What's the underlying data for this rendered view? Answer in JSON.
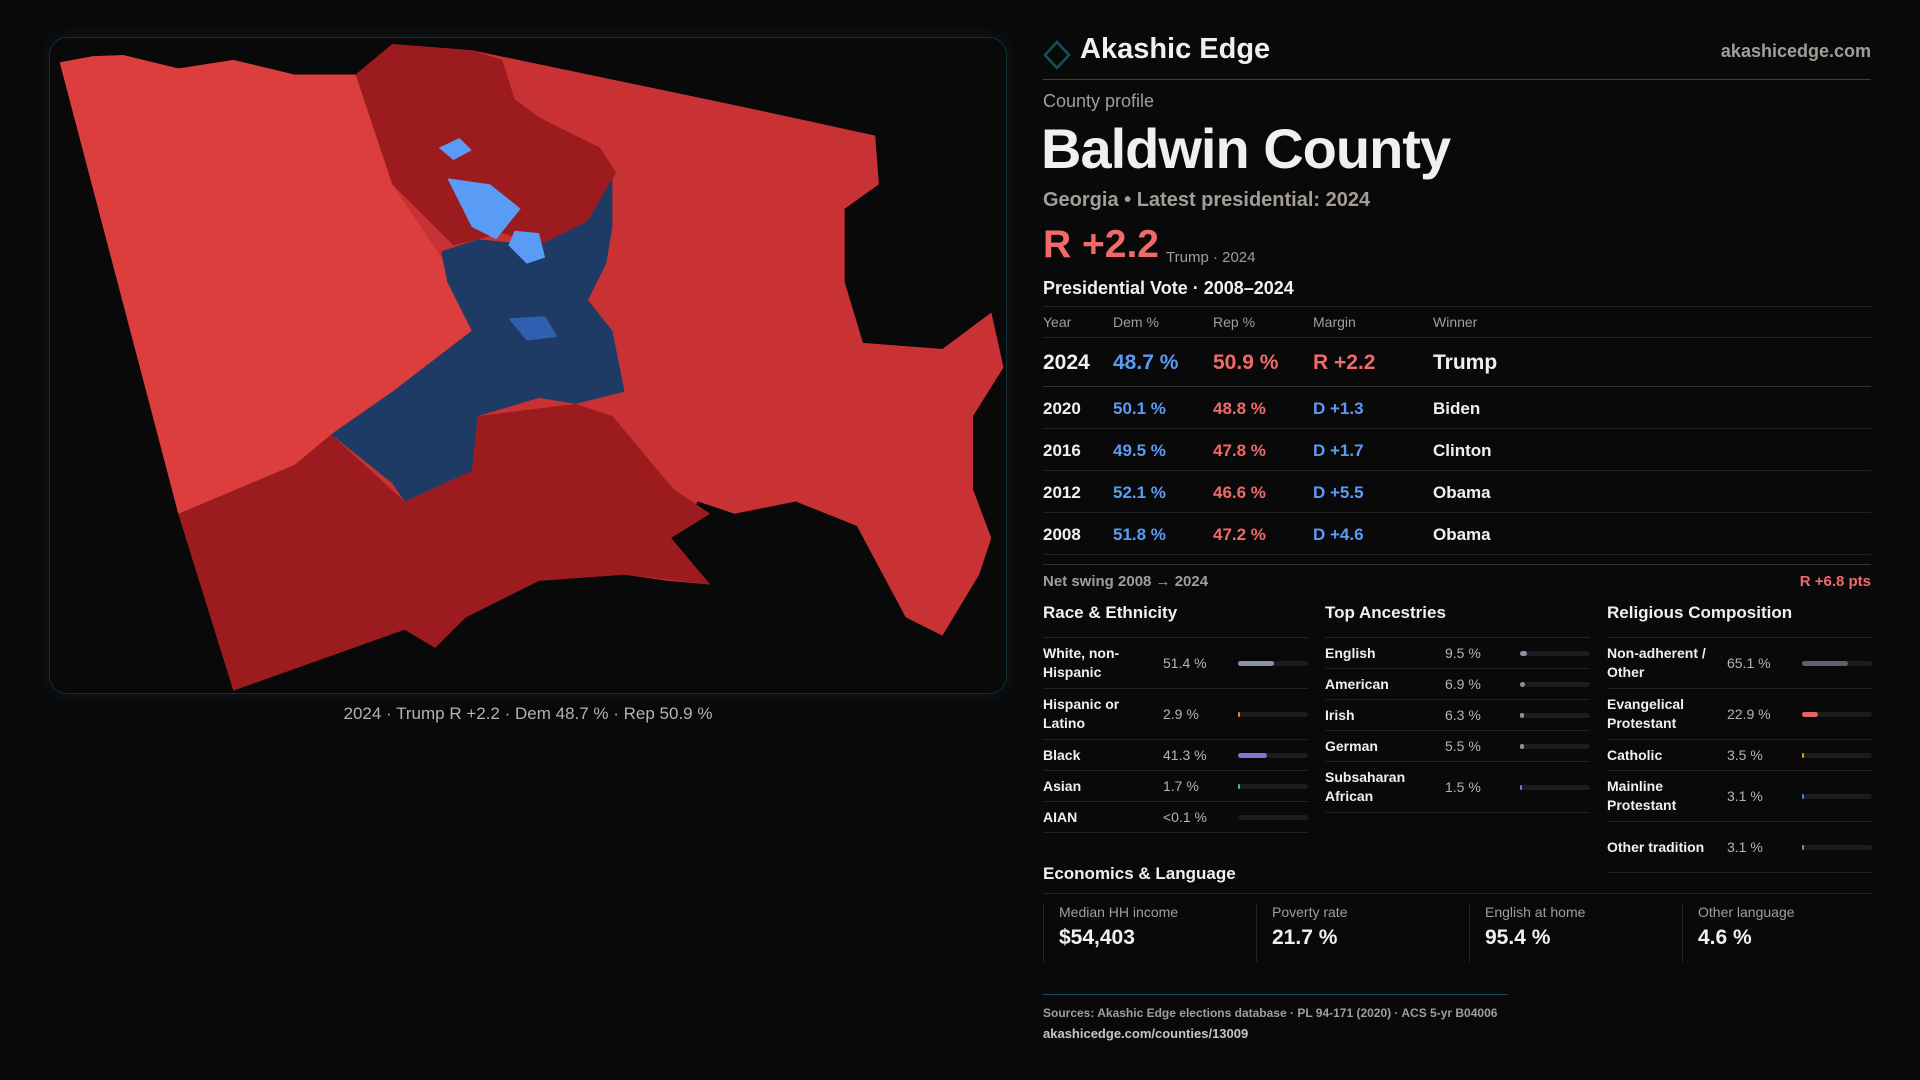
{
  "brand": {
    "name": "Akashic Edge",
    "site": "akashicedge.com",
    "accent": "#13505a"
  },
  "profile": {
    "kicker": "County profile",
    "title": "Baldwin County",
    "subtitle": "Georgia • Latest presidential: 2024",
    "margin": "R +2.2",
    "margin_note": "Trump · 2024"
  },
  "map": {
    "caption": "2024 · Trump R +2.2 · Dem 48.7 % · Rep 50.9 %",
    "colors": {
      "rep_strong": "#9c1b1e",
      "rep": "#c93234",
      "rep_light": "#dc3d3d",
      "dem_strong": "#1e3b66",
      "dem_light": "#5a9cf5"
    }
  },
  "vote": {
    "heading": "Presidential Vote · 2008–2024",
    "columns": [
      "Year",
      "Dem %",
      "Rep %",
      "Margin",
      "Winner"
    ],
    "rows": [
      {
        "year": "2024",
        "dem": "48.7 %",
        "rep": "50.9 %",
        "margin": "R +2.2",
        "party": "R",
        "winner": "Trump"
      },
      {
        "year": "2020",
        "dem": "50.1 %",
        "rep": "48.8 %",
        "margin": "D +1.3",
        "party": "D",
        "winner": "Biden"
      },
      {
        "year": "2016",
        "dem": "49.5 %",
        "rep": "47.8 %",
        "margin": "D +1.7",
        "party": "D",
        "winner": "Clinton"
      },
      {
        "year": "2012",
        "dem": "52.1 %",
        "rep": "46.6 %",
        "margin": "D +5.5",
        "party": "D",
        "winner": "Obama"
      },
      {
        "year": "2008",
        "dem": "51.8 %",
        "rep": "47.2 %",
        "margin": "D +4.6",
        "party": "D",
        "winner": "Obama"
      }
    ],
    "swing_label": "Net swing 2008 → 2024",
    "swing_value": "R +6.8 pts"
  },
  "race": {
    "heading": "Race & Ethnicity",
    "items": [
      {
        "label": "White, non-Hispanic",
        "value": "51.4 %",
        "pct": 51.4,
        "color": "#8a93a6"
      },
      {
        "label": "Hispanic or Latino",
        "value": "2.9 %",
        "pct": 2.9,
        "color": "#e0900f"
      },
      {
        "label": "Black",
        "value": "41.3 %",
        "pct": 41.3,
        "color": "#8a6fd6"
      },
      {
        "label": "Asian",
        "value": "1.7 %",
        "pct": 1.7,
        "color": "#2fc49a"
      },
      {
        "label": "AIAN",
        "value": "<0.1 %",
        "pct": 0,
        "color": "#888888"
      }
    ]
  },
  "ancestry": {
    "heading": "Top Ancestries",
    "items": [
      {
        "label": "English",
        "value": "9.5 %",
        "pct": 9.5,
        "color": "#8a93a6"
      },
      {
        "label": "American",
        "value": "6.9 %",
        "pct": 6.9,
        "color": "#8a93a6"
      },
      {
        "label": "Irish",
        "value": "6.3 %",
        "pct": 6.3,
        "color": "#8a93a6"
      },
      {
        "label": "German",
        "value": "5.5 %",
        "pct": 5.5,
        "color": "#8a93a6"
      },
      {
        "label": "Subsaharan African",
        "value": "1.5 %",
        "pct": 1.5,
        "color": "#8a6fd6"
      }
    ]
  },
  "religion": {
    "heading": "Religious Composition",
    "items": [
      {
        "label": "Non-adherent / Other",
        "value": "65.1 %",
        "pct": 65.1,
        "color": "#5c6170"
      },
      {
        "label": "Evangelical Protestant",
        "value": "22.9 %",
        "pct": 22.9,
        "color": "#e06464"
      },
      {
        "label": "Catholic",
        "value": "3.5 %",
        "pct": 3.5,
        "color": "#e0a00f"
      },
      {
        "label": "Mainline Protestant",
        "value": "3.1 %",
        "pct": 3.1,
        "color": "#4a86e0"
      },
      {
        "label": "Other tradition",
        "value": "3.1 %",
        "pct": 3.1,
        "color": "#888890"
      }
    ]
  },
  "econ": {
    "heading": "Economics & Language",
    "stats": [
      {
        "label": "Median HH income",
        "value": "$54,403"
      },
      {
        "label": "Poverty rate",
        "value": "21.7 %"
      },
      {
        "label": "English at home",
        "value": "95.4 %"
      },
      {
        "label": "Other language",
        "value": "4.6 %"
      }
    ]
  },
  "footer": {
    "sources": "Sources: Akashic Edge elections database · PL 94-171 (2020) · ACS 5-yr B04006",
    "url": "akashicedge.com/counties/13009"
  }
}
